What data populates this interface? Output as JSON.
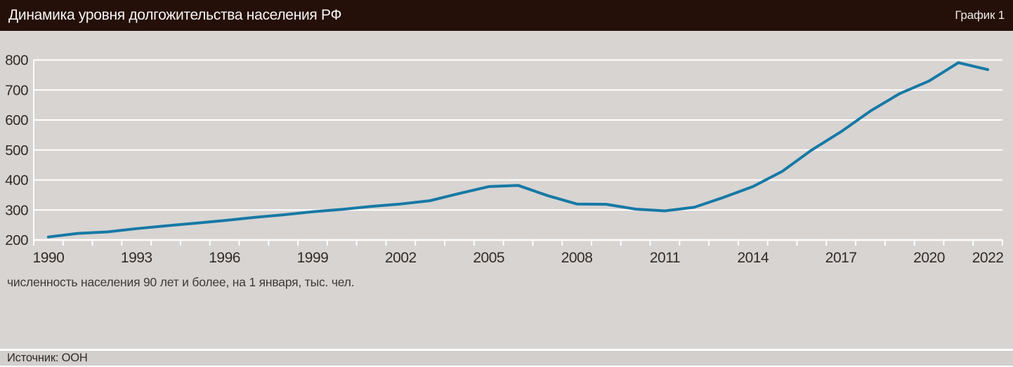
{
  "header": {
    "title": "Динамика уровня долгожительства населения РФ",
    "chart_label": "График 1"
  },
  "footer": {
    "source": "Источник: ООН"
  },
  "chart_data": {
    "type": "line",
    "title": "Динамика уровня долгожительства населения РФ",
    "note": "численность населения 90 лет и более, на 1 января, тыс. чел.",
    "series_name": "Численность населения 90 лет и более, тыс. чел.",
    "x": [
      1990,
      1991,
      1992,
      1993,
      1994,
      1995,
      1996,
      1997,
      1998,
      1999,
      2000,
      2001,
      2002,
      2003,
      2004,
      2005,
      2006,
      2007,
      2008,
      2009,
      2010,
      2011,
      2012,
      2013,
      2014,
      2015,
      2016,
      2017,
      2018,
      2019,
      2020,
      2021,
      2022
    ],
    "values": [
      210,
      222,
      227,
      238,
      247,
      256,
      265,
      275,
      284,
      294,
      302,
      312,
      320,
      331,
      355,
      378,
      382,
      348,
      320,
      319,
      303,
      297,
      309,
      342,
      378,
      429,
      500,
      561,
      630,
      688,
      730,
      791,
      768
    ],
    "x_tick_labels": [
      "1990",
      "1993",
      "1996",
      "1999",
      "2002",
      "2005",
      "2008",
      "2011",
      "2014",
      "2017",
      "2020",
      "2022"
    ],
    "y_ticks": [
      200,
      300,
      400,
      500,
      600,
      700,
      800
    ],
    "ylim": [
      200,
      800
    ],
    "grid": true,
    "legend": "none",
    "line_color": "#1779a5",
    "grid_color": "#ffffff",
    "plot_bg_color": "#d7d4d2",
    "header_bg_color": "#251009",
    "tick_label_color": "#342b24"
  }
}
